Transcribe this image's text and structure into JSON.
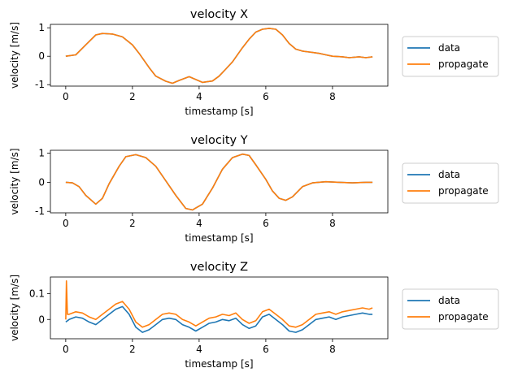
{
  "chart_data": [
    {
      "type": "line",
      "title": "velocity X",
      "xlabel": "timestamp [s]",
      "ylabel": "velocity [m/s]",
      "xlim": [
        -0.46,
        9.66
      ],
      "ylim": [
        -1.05,
        1.12
      ],
      "xticks": [
        0,
        2,
        4,
        6,
        8
      ],
      "yticks": [
        -1,
        0,
        1
      ],
      "legend_position": "outside-right",
      "series": [
        {
          "name": "data",
          "color": "#1f77b4",
          "x": [
            0,
            0.3,
            0.6,
            0.9,
            1.1,
            1.4,
            1.7,
            2.0,
            2.2,
            2.5,
            2.7,
            3.0,
            3.2,
            3.4,
            3.7,
            3.9,
            4.1,
            4.4,
            4.6,
            4.8,
            5.0,
            5.3,
            5.5,
            5.7,
            5.9,
            6.1,
            6.3,
            6.5,
            6.7,
            6.9,
            7.1,
            7.3,
            7.6,
            7.8,
            8.0,
            8.3,
            8.5,
            8.8,
            9.0,
            9.2
          ],
          "y": [
            0.0,
            0.05,
            0.4,
            0.75,
            0.8,
            0.78,
            0.68,
            0.4,
            0.1,
            -0.4,
            -0.7,
            -0.88,
            -0.95,
            -0.85,
            -0.72,
            -0.82,
            -0.92,
            -0.87,
            -0.7,
            -0.45,
            -0.2,
            0.3,
            0.6,
            0.85,
            0.95,
            0.98,
            0.95,
            0.75,
            0.45,
            0.25,
            0.18,
            0.15,
            0.1,
            0.05,
            0.0,
            -0.02,
            -0.05,
            -0.02,
            -0.05,
            -0.02
          ]
        },
        {
          "name": "propagate",
          "color": "#ff7f0e",
          "x": [
            0,
            0.3,
            0.6,
            0.9,
            1.1,
            1.4,
            1.7,
            2.0,
            2.2,
            2.5,
            2.7,
            3.0,
            3.2,
            3.4,
            3.7,
            3.9,
            4.1,
            4.4,
            4.6,
            4.8,
            5.0,
            5.3,
            5.5,
            5.7,
            5.9,
            6.1,
            6.3,
            6.5,
            6.7,
            6.9,
            7.1,
            7.3,
            7.6,
            7.8,
            8.0,
            8.3,
            8.5,
            8.8,
            9.0,
            9.2
          ],
          "y": [
            0.0,
            0.05,
            0.4,
            0.75,
            0.8,
            0.78,
            0.68,
            0.4,
            0.1,
            -0.4,
            -0.7,
            -0.88,
            -0.95,
            -0.85,
            -0.72,
            -0.82,
            -0.92,
            -0.87,
            -0.7,
            -0.45,
            -0.2,
            0.3,
            0.6,
            0.85,
            0.95,
            0.98,
            0.95,
            0.75,
            0.45,
            0.25,
            0.18,
            0.15,
            0.1,
            0.05,
            0.0,
            -0.02,
            -0.05,
            -0.02,
            -0.05,
            -0.02
          ]
        }
      ]
    },
    {
      "type": "line",
      "title": "velocity Y",
      "xlabel": "timestamp [s]",
      "ylabel": "velocity [m/s]",
      "xlim": [
        -0.46,
        9.66
      ],
      "ylim": [
        -1.05,
        1.1
      ],
      "xticks": [
        0,
        2,
        4,
        6,
        8
      ],
      "yticks": [
        -1,
        0,
        1
      ],
      "legend_position": "outside-right",
      "series": [
        {
          "name": "data",
          "color": "#1f77b4",
          "x": [
            0,
            0.2,
            0.4,
            0.6,
            0.9,
            1.1,
            1.3,
            1.6,
            1.8,
            2.1,
            2.4,
            2.7,
            3.0,
            3.3,
            3.6,
            3.8,
            4.1,
            4.4,
            4.7,
            5.0,
            5.3,
            5.5,
            5.7,
            6.0,
            6.2,
            6.4,
            6.6,
            6.8,
            7.1,
            7.4,
            7.8,
            8.2,
            8.6,
            9.0,
            9.2
          ],
          "y": [
            0.0,
            -0.02,
            -0.15,
            -0.45,
            -0.75,
            -0.55,
            -0.05,
            0.55,
            0.88,
            0.95,
            0.85,
            0.55,
            0.05,
            -0.45,
            -0.9,
            -0.95,
            -0.75,
            -0.2,
            0.45,
            0.85,
            0.97,
            0.92,
            0.6,
            0.1,
            -0.3,
            -0.55,
            -0.62,
            -0.5,
            -0.15,
            -0.02,
            0.02,
            0.0,
            -0.02,
            0.0,
            0.0
          ]
        },
        {
          "name": "propagate",
          "color": "#ff7f0e",
          "x": [
            0,
            0.2,
            0.4,
            0.6,
            0.9,
            1.1,
            1.3,
            1.6,
            1.8,
            2.1,
            2.4,
            2.7,
            3.0,
            3.3,
            3.6,
            3.8,
            4.1,
            4.4,
            4.7,
            5.0,
            5.3,
            5.5,
            5.7,
            6.0,
            6.2,
            6.4,
            6.6,
            6.8,
            7.1,
            7.4,
            7.8,
            8.2,
            8.6,
            9.0,
            9.2
          ],
          "y": [
            0.0,
            -0.02,
            -0.15,
            -0.45,
            -0.75,
            -0.55,
            -0.05,
            0.55,
            0.88,
            0.95,
            0.85,
            0.55,
            0.05,
            -0.45,
            -0.9,
            -0.95,
            -0.75,
            -0.2,
            0.45,
            0.85,
            0.97,
            0.92,
            0.6,
            0.1,
            -0.3,
            -0.55,
            -0.62,
            -0.5,
            -0.15,
            -0.02,
            0.02,
            0.0,
            -0.02,
            0.0,
            0.0
          ]
        }
      ]
    },
    {
      "type": "line",
      "title": "velocity Z",
      "xlabel": "timestamp [s]",
      "ylabel": "velocity [m/s]",
      "xlim": [
        -0.46,
        9.66
      ],
      "ylim": [
        -0.075,
        0.165
      ],
      "xticks": [
        0,
        2,
        4,
        6,
        8
      ],
      "yticks": [
        0.0,
        0.1
      ],
      "legend_position": "outside-right",
      "series": [
        {
          "name": "data",
          "color": "#1f77b4",
          "x": [
            0,
            0.1,
            0.3,
            0.5,
            0.7,
            0.9,
            1.1,
            1.3,
            1.5,
            1.7,
            1.9,
            2.1,
            2.3,
            2.5,
            2.7,
            2.9,
            3.1,
            3.3,
            3.5,
            3.7,
            3.9,
            4.1,
            4.3,
            4.5,
            4.7,
            4.9,
            5.1,
            5.3,
            5.5,
            5.7,
            5.9,
            6.1,
            6.3,
            6.5,
            6.7,
            6.9,
            7.1,
            7.3,
            7.5,
            7.7,
            7.9,
            8.1,
            8.3,
            8.5,
            8.7,
            8.9,
            9.1,
            9.2
          ],
          "y": [
            -0.01,
            0.0,
            0.01,
            0.005,
            -0.01,
            -0.02,
            0.0,
            0.02,
            0.04,
            0.05,
            0.02,
            -0.03,
            -0.05,
            -0.04,
            -0.02,
            0.0,
            0.005,
            0.0,
            -0.02,
            -0.03,
            -0.045,
            -0.03,
            -0.015,
            -0.01,
            0.0,
            -0.005,
            0.005,
            -0.02,
            -0.035,
            -0.025,
            0.01,
            0.02,
            0.0,
            -0.02,
            -0.045,
            -0.05,
            -0.04,
            -0.02,
            0.0,
            0.005,
            0.01,
            0.0,
            0.01,
            0.015,
            0.02,
            0.025,
            0.02,
            0.02
          ]
        },
        {
          "name": "propagate",
          "color": "#ff7f0e",
          "x": [
            0,
            0.02,
            0.05,
            0.1,
            0.3,
            0.5,
            0.7,
            0.9,
            1.1,
            1.3,
            1.5,
            1.7,
            1.9,
            2.1,
            2.3,
            2.5,
            2.7,
            2.9,
            3.1,
            3.3,
            3.5,
            3.7,
            3.9,
            4.1,
            4.3,
            4.5,
            4.7,
            4.9,
            5.1,
            5.3,
            5.5,
            5.7,
            5.9,
            6.1,
            6.3,
            6.5,
            6.7,
            6.9,
            7.1,
            7.3,
            7.5,
            7.7,
            7.9,
            8.1,
            8.3,
            8.5,
            8.7,
            8.9,
            9.1,
            9.2
          ],
          "y": [
            0.0,
            0.15,
            0.02,
            0.02,
            0.03,
            0.025,
            0.01,
            0.0,
            0.02,
            0.04,
            0.06,
            0.07,
            0.04,
            -0.01,
            -0.03,
            -0.02,
            0.0,
            0.02,
            0.025,
            0.02,
            0.0,
            -0.01,
            -0.025,
            -0.01,
            0.005,
            0.01,
            0.02,
            0.015,
            0.025,
            0.0,
            -0.015,
            -0.005,
            0.03,
            0.04,
            0.02,
            0.0,
            -0.025,
            -0.03,
            -0.02,
            0.0,
            0.02,
            0.025,
            0.03,
            0.02,
            0.03,
            0.035,
            0.04,
            0.045,
            0.04,
            0.045
          ]
        }
      ]
    }
  ]
}
